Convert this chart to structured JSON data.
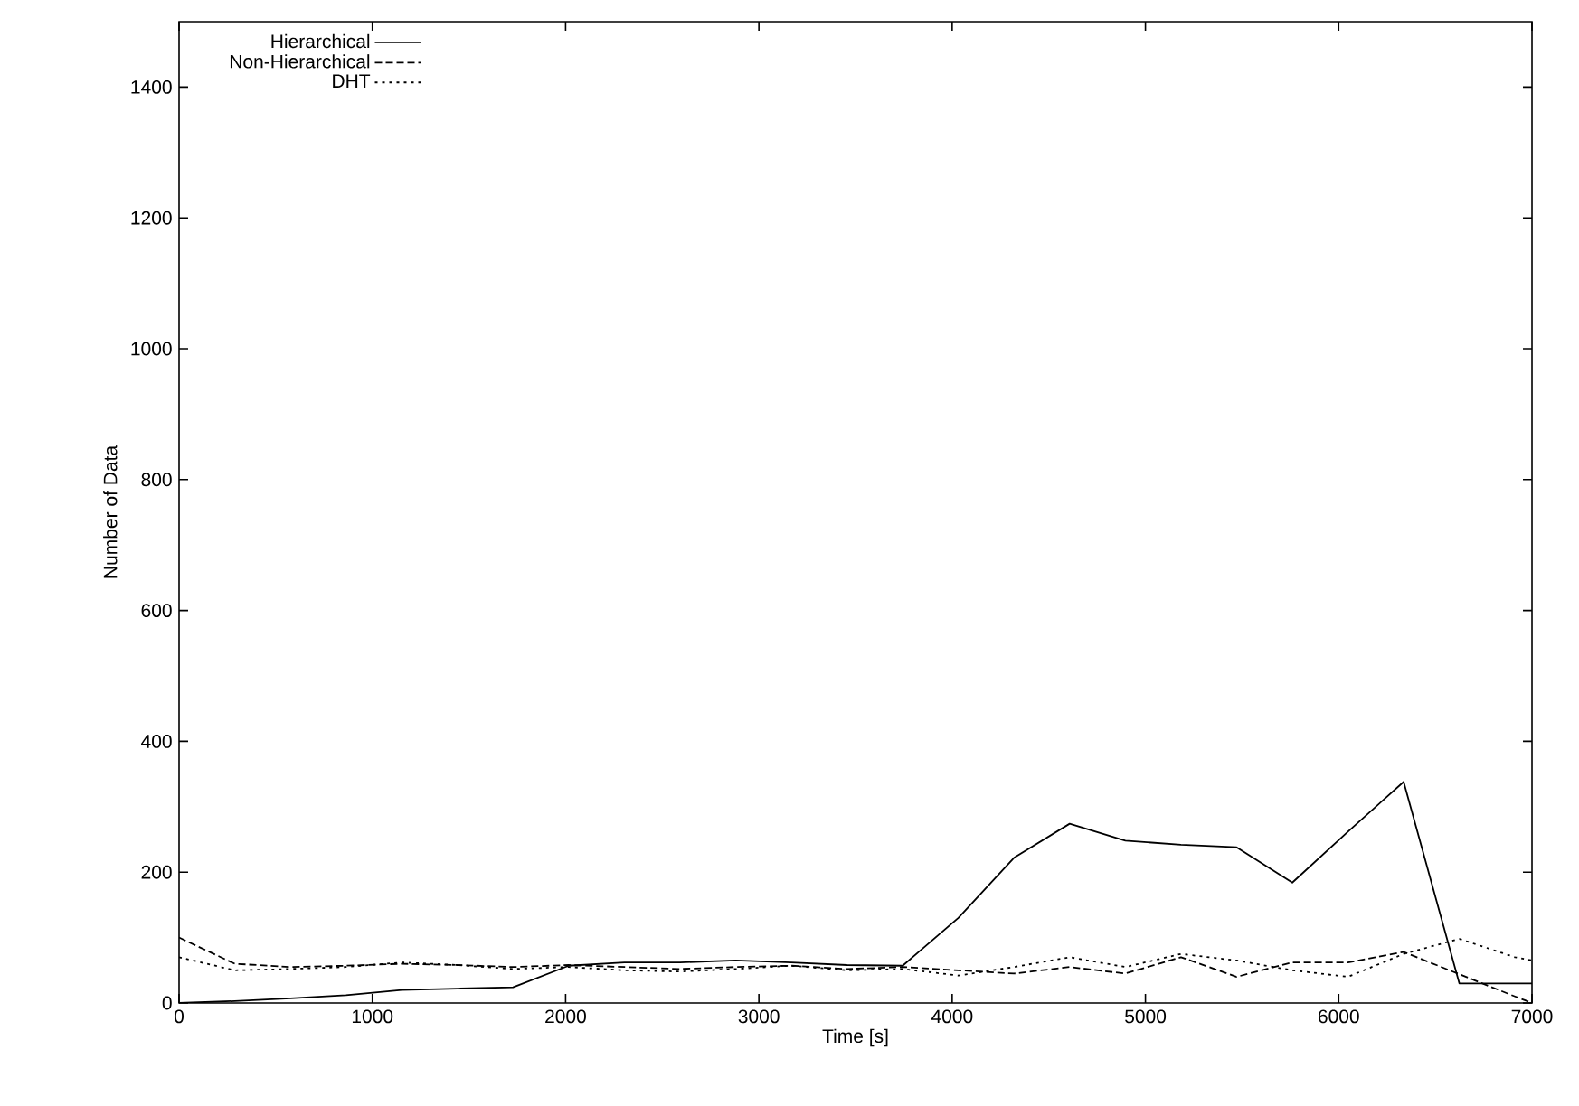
{
  "chart_data": {
    "type": "line",
    "xlabel": "Time [s]",
    "ylabel": "Number of Data",
    "x": [
      0,
      288,
      576,
      864,
      1152,
      1440,
      1728,
      2016,
      2304,
      2592,
      2880,
      3168,
      3456,
      3744,
      4032,
      4320,
      4608,
      4896,
      5184,
      5472,
      5760,
      6048,
      6336,
      6624,
      6912,
      7000
    ],
    "series": [
      {
        "name": "Hierarchical",
        "color": "#000000",
        "line_style": "solid",
        "values": [
          0,
          3,
          7,
          12,
          20,
          22,
          24,
          57,
          62,
          62,
          65,
          62,
          58,
          57,
          130,
          222,
          274,
          248,
          242,
          238,
          184,
          262,
          338,
          30,
          30,
          30
        ]
      },
      {
        "name": "Non-Hierarchical",
        "color": "#000000",
        "line_style": "dashed",
        "values": [
          100,
          60,
          55,
          57,
          60,
          58,
          55,
          58,
          55,
          52,
          55,
          57,
          52,
          55,
          50,
          45,
          55,
          45,
          70,
          40,
          62,
          62,
          78,
          44,
          10,
          0
        ]
      },
      {
        "name": "DHT",
        "color": "#000000",
        "line_style": "dotted",
        "values": [
          70,
          50,
          52,
          55,
          62,
          58,
          52,
          55,
          50,
          48,
          52,
          57,
          50,
          52,
          42,
          55,
          70,
          55,
          75,
          65,
          50,
          40,
          75,
          98,
          70,
          65
        ]
      }
    ],
    "xlim": [
      0,
      7000
    ],
    "ylim": [
      0,
      1500
    ],
    "xticks": [
      0,
      1000,
      2000,
      3000,
      4000,
      5000,
      6000,
      7000
    ],
    "yticks": [
      0,
      200,
      400,
      600,
      800,
      1000,
      1200,
      1400
    ],
    "grid": false,
    "legend": "top left",
    "marker": "none"
  }
}
